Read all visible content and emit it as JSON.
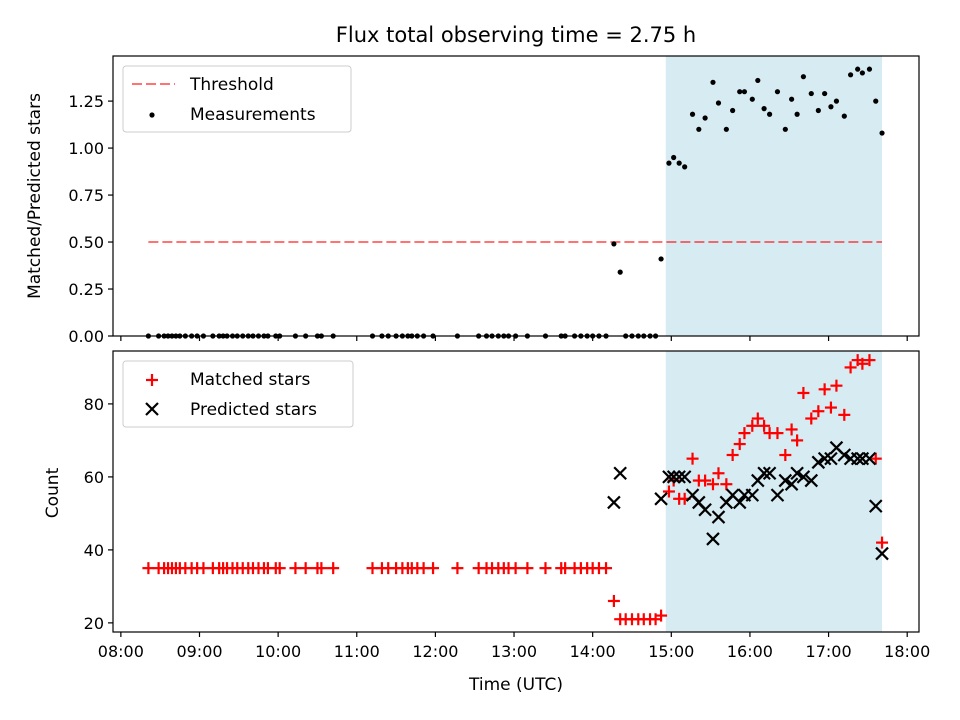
{
  "figure": {
    "title": "Flux total observing time = 2.75 h",
    "xlabel": "Time (UTC)",
    "x_ticks": [
      "08:00",
      "09:00",
      "10:00",
      "11:00",
      "12:00",
      "13:00",
      "14:00",
      "15:00",
      "16:00",
      "17:00",
      "18:00"
    ],
    "xlim_hours": [
      7.9,
      18.15
    ],
    "highlight_span_hours": [
      14.93,
      17.68
    ],
    "colors": {
      "highlight": "#add8e6",
      "threshold": "#ff0000",
      "matched": "#ff0000",
      "predicted": "#000000",
      "measure": "#000000"
    }
  },
  "chart_data": [
    {
      "type": "scatter",
      "ylabel": "Matched/Predicted stars",
      "ylim": [
        0,
        1.49
      ],
      "y_ticks": [
        "0.00",
        "0.25",
        "0.50",
        "0.75",
        "1.00",
        "1.25"
      ],
      "legend_placement": "upper-left",
      "threshold": {
        "name": "Threshold",
        "value": 0.5,
        "x_range_hours": [
          8.35,
          17.68
        ]
      },
      "series": [
        {
          "name": "Measurements",
          "x_hours": [
            8.35,
            8.48,
            8.55,
            8.6,
            8.65,
            8.7,
            8.75,
            8.82,
            8.9,
            8.97,
            9.05,
            9.17,
            9.25,
            9.3,
            9.35,
            9.42,
            9.48,
            9.55,
            9.62,
            9.68,
            9.75,
            9.82,
            9.87,
            9.97,
            10.02,
            10.22,
            10.35,
            10.5,
            10.55,
            10.7,
            11.2,
            11.32,
            11.4,
            11.5,
            11.58,
            11.65,
            11.7,
            11.77,
            11.85,
            11.97,
            12.28,
            12.55,
            12.65,
            12.72,
            12.8,
            12.87,
            12.93,
            13.02,
            13.17,
            13.4,
            13.6,
            13.65,
            13.77,
            13.85,
            13.93,
            14.0,
            14.08,
            14.17,
            14.27,
            14.35,
            14.42,
            14.5,
            14.58,
            14.65,
            14.73,
            14.8,
            14.87,
            14.97,
            15.03,
            15.1,
            15.17,
            15.27,
            15.35,
            15.43,
            15.53,
            15.6,
            15.7,
            15.78,
            15.87,
            15.93,
            16.03,
            16.1,
            16.18,
            16.25,
            16.35,
            16.45,
            16.53,
            16.6,
            16.68,
            16.78,
            16.87,
            16.95,
            17.03,
            17.1,
            17.2,
            17.28,
            17.37,
            17.43,
            17.52,
            17.6,
            17.68
          ],
          "y": [
            0,
            0,
            0,
            0,
            0,
            0,
            0,
            0,
            0,
            0,
            0,
            0,
            0,
            0,
            0,
            0,
            0,
            0,
            0,
            0,
            0,
            0,
            0,
            0,
            0,
            0,
            0,
            0,
            0,
            0,
            0,
            0,
            0,
            0,
            0,
            0,
            0,
            0,
            0,
            0,
            0,
            0,
            0,
            0,
            0,
            0,
            0,
            0,
            0,
            0,
            0,
            0,
            0,
            0,
            0,
            0,
            0,
            0,
            0.49,
            0.34,
            0,
            0,
            0,
            0,
            0,
            0,
            0.41,
            0.92,
            0.95,
            0.92,
            0.9,
            1.18,
            1.1,
            1.16,
            1.35,
            1.24,
            1.1,
            1.2,
            1.3,
            1.3,
            1.26,
            1.36,
            1.21,
            1.18,
            1.3,
            1.1,
            1.26,
            1.18,
            1.38,
            1.29,
            1.2,
            1.29,
            1.22,
            1.25,
            1.17,
            1.39,
            1.42,
            1.4,
            1.42,
            1.25,
            1.08
          ]
        }
      ]
    },
    {
      "type": "scatter",
      "ylabel": "Count",
      "ylim": [
        17.5,
        94.5
      ],
      "y_ticks": [
        "20",
        "40",
        "60",
        "80"
      ],
      "legend_placement": "upper-left",
      "series": [
        {
          "name": "Matched stars",
          "x_hours": [
            8.35,
            8.48,
            8.55,
            8.6,
            8.65,
            8.7,
            8.75,
            8.82,
            8.9,
            8.97,
            9.05,
            9.17,
            9.25,
            9.3,
            9.35,
            9.42,
            9.48,
            9.55,
            9.62,
            9.68,
            9.75,
            9.82,
            9.87,
            9.97,
            10.02,
            10.22,
            10.35,
            10.5,
            10.55,
            10.7,
            11.2,
            11.32,
            11.4,
            11.5,
            11.58,
            11.65,
            11.7,
            11.77,
            11.85,
            11.97,
            12.28,
            12.55,
            12.65,
            12.72,
            12.8,
            12.87,
            12.93,
            13.02,
            13.17,
            13.4,
            13.6,
            13.65,
            13.77,
            13.85,
            13.93,
            14.0,
            14.08,
            14.17,
            14.27,
            14.35,
            14.42,
            14.5,
            14.58,
            14.65,
            14.73,
            14.8,
            14.87,
            14.97,
            15.03,
            15.1,
            15.17,
            15.27,
            15.35,
            15.43,
            15.53,
            15.6,
            15.7,
            15.78,
            15.87,
            15.93,
            16.03,
            16.1,
            16.18,
            16.25,
            16.35,
            16.45,
            16.53,
            16.6,
            16.68,
            16.78,
            16.87,
            16.95,
            17.03,
            17.1,
            17.2,
            17.28,
            17.37,
            17.43,
            17.52,
            17.6,
            17.68
          ],
          "y": [
            35,
            35,
            35,
            35,
            35,
            35,
            35,
            35,
            35,
            35,
            35,
            35,
            35,
            35,
            35,
            35,
            35,
            35,
            35,
            35,
            35,
            35,
            35,
            35,
            35,
            35,
            35,
            35,
            35,
            35,
            35,
            35,
            35,
            35,
            35,
            35,
            35,
            35,
            35,
            35,
            35,
            35,
            35,
            35,
            35,
            35,
            35,
            35,
            35,
            35,
            35,
            35,
            35,
            35,
            35,
            35,
            35,
            35,
            26,
            21,
            21,
            21,
            21,
            21,
            21,
            21,
            22,
            56,
            59,
            54,
            54,
            65,
            59,
            59,
            58,
            61,
            58,
            66,
            69,
            72,
            74,
            76,
            74,
            72,
            72,
            66,
            73,
            70,
            83,
            76,
            78,
            84,
            79,
            85,
            77,
            90,
            92,
            91,
            92,
            65,
            42
          ]
        },
        {
          "name": "Predicted stars",
          "x_hours": [
            14.27,
            14.35,
            14.87,
            14.97,
            15.03,
            15.1,
            15.17,
            15.27,
            15.35,
            15.43,
            15.53,
            15.6,
            15.7,
            15.78,
            15.87,
            15.93,
            16.03,
            16.1,
            16.18,
            16.25,
            16.35,
            16.45,
            16.53,
            16.6,
            16.68,
            16.78,
            16.87,
            16.95,
            17.03,
            17.1,
            17.2,
            17.28,
            17.37,
            17.43,
            17.52,
            17.6,
            17.68
          ],
          "y": [
            53,
            61,
            54,
            60,
            60,
            60,
            60,
            55,
            53,
            51,
            43,
            49,
            53,
            55,
            53,
            55,
            55,
            59,
            61,
            61,
            55,
            59,
            58,
            61,
            60,
            59,
            64,
            65,
            65,
            68,
            66,
            65,
            65,
            65,
            65,
            52,
            39
          ]
        }
      ]
    }
  ]
}
